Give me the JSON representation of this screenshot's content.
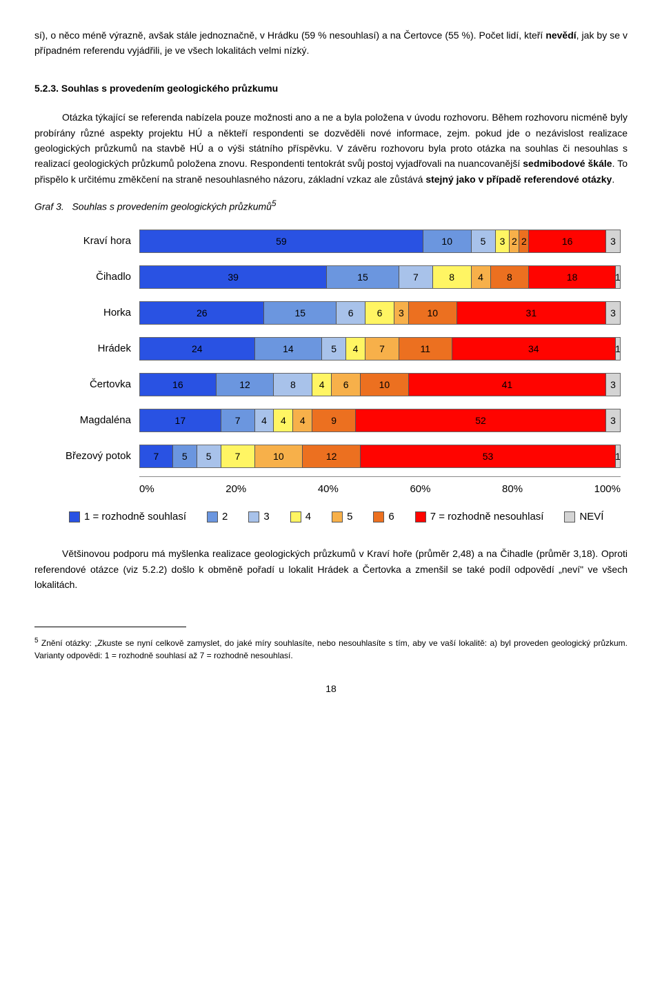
{
  "para1": "sí), o něco méně výrazně, avšak stále jednoznačně, v Hrádku (59 % nesouhlasí) a na Čertovce (55 %). Počet lidí, kteří ",
  "para1_bold": "nevědí",
  "para1_tail": ", jak by se v případném referendu vyjádřili, je ve všech lokalitách velmi nízký.",
  "section_heading": "5.2.3. Souhlas s provedením geologického průzkumu",
  "para2a": "Otázka týkající se referenda nabízela pouze možnosti ano a ne a byla položena v úvodu rozhovoru. Během rozhovoru nicméně byly probírány různé aspekty projektu HÚ a někteří respondenti se dozvěděli nové informace, zejm. pokud jde o nezávislost realizace geologických průzkumů na stavbě HÚ a o výši státního příspěvku. V závěru rozhovoru byla proto otázka na souhlas či nesouhlas s realizací geologických průzkumů položena znovu. Respondenti tentokrát svůj postoj vyjadřovali na nuancovanější ",
  "para2_bold1": "sedmibodové škále",
  "para2b": ". To přispělo k určitému změkčení na straně nesouhlasného názoru, základní vzkaz ale zůstává ",
  "para2_bold2": "stejný jako v případě referendové otázky",
  "para2c": ".",
  "graf_label": "Graf 3.",
  "graf_title": "Souhlas s provedením geologických průzkumů",
  "sup5": "5",
  "chart": {
    "colors": {
      "1": "#2952e3",
      "2": "#6b96df",
      "3": "#a8c2ea",
      "4": "#fff563",
      "5": "#f7b04a",
      "6": "#ec7020",
      "7": "#ff0400",
      "8": "#d4d4d4"
    },
    "categories": [
      {
        "label": "Kraví hora",
        "segs": [
          59,
          10,
          5,
          3,
          2,
          2,
          16,
          3
        ]
      },
      {
        "label": "Čihadlo",
        "segs": [
          39,
          15,
          7,
          8,
          4,
          8,
          18,
          1
        ]
      },
      {
        "label": "Horka",
        "segs": [
          26,
          15,
          6,
          6,
          3,
          10,
          31,
          3
        ]
      },
      {
        "label": "Hrádek",
        "segs": [
          24,
          14,
          5,
          4,
          7,
          11,
          34,
          1
        ]
      },
      {
        "label": "Čertovka",
        "segs": [
          16,
          12,
          8,
          4,
          6,
          10,
          41,
          3
        ]
      },
      {
        "label": "Magdaléna",
        "segs": [
          17,
          7,
          4,
          4,
          4,
          9,
          52,
          3
        ]
      },
      {
        "label": "Březový potok",
        "segs": [
          7,
          5,
          5,
          7,
          10,
          12,
          53,
          1
        ]
      }
    ],
    "axis": [
      "0%",
      "20%",
      "40%",
      "60%",
      "80%",
      "100%"
    ],
    "legend": [
      {
        "c": "1",
        "label": "1 = rozhodně souhlasí"
      },
      {
        "c": "2",
        "label": "2"
      },
      {
        "c": "3",
        "label": "3"
      },
      {
        "c": "4",
        "label": "4"
      },
      {
        "c": "5",
        "label": "5"
      },
      {
        "c": "6",
        "label": "6"
      },
      {
        "c": "7",
        "label": "7 = rozhodně nesouhlasí"
      },
      {
        "c": "8",
        "label": "NEVÍ"
      }
    ]
  },
  "para3": "Většinovou podporu má myšlenka realizace geologických průzkumů v Kraví hoře (průměr 2,48) a na Čihadle (průměr 3,18). Oproti referendové otázce (viz 5.2.2) došlo k obměně pořadí u lokalit Hrádek a Čertovka a zmenšil se také podíl odpovědí „neví\" ve všech lokalitách.",
  "footnote_sup": "5",
  "footnote": " Znění otázky: „Zkuste se nyní celkově zamyslet, do jaké míry souhlasíte, nebo nesouhlasíte s tím, aby ve vaší lokalitě: a) byl proveden geologický průzkum. Varianty odpovědi: 1 = rozhodně souhlasí až 7 = rozhodně nesouhlasí.",
  "pagenum": "18"
}
